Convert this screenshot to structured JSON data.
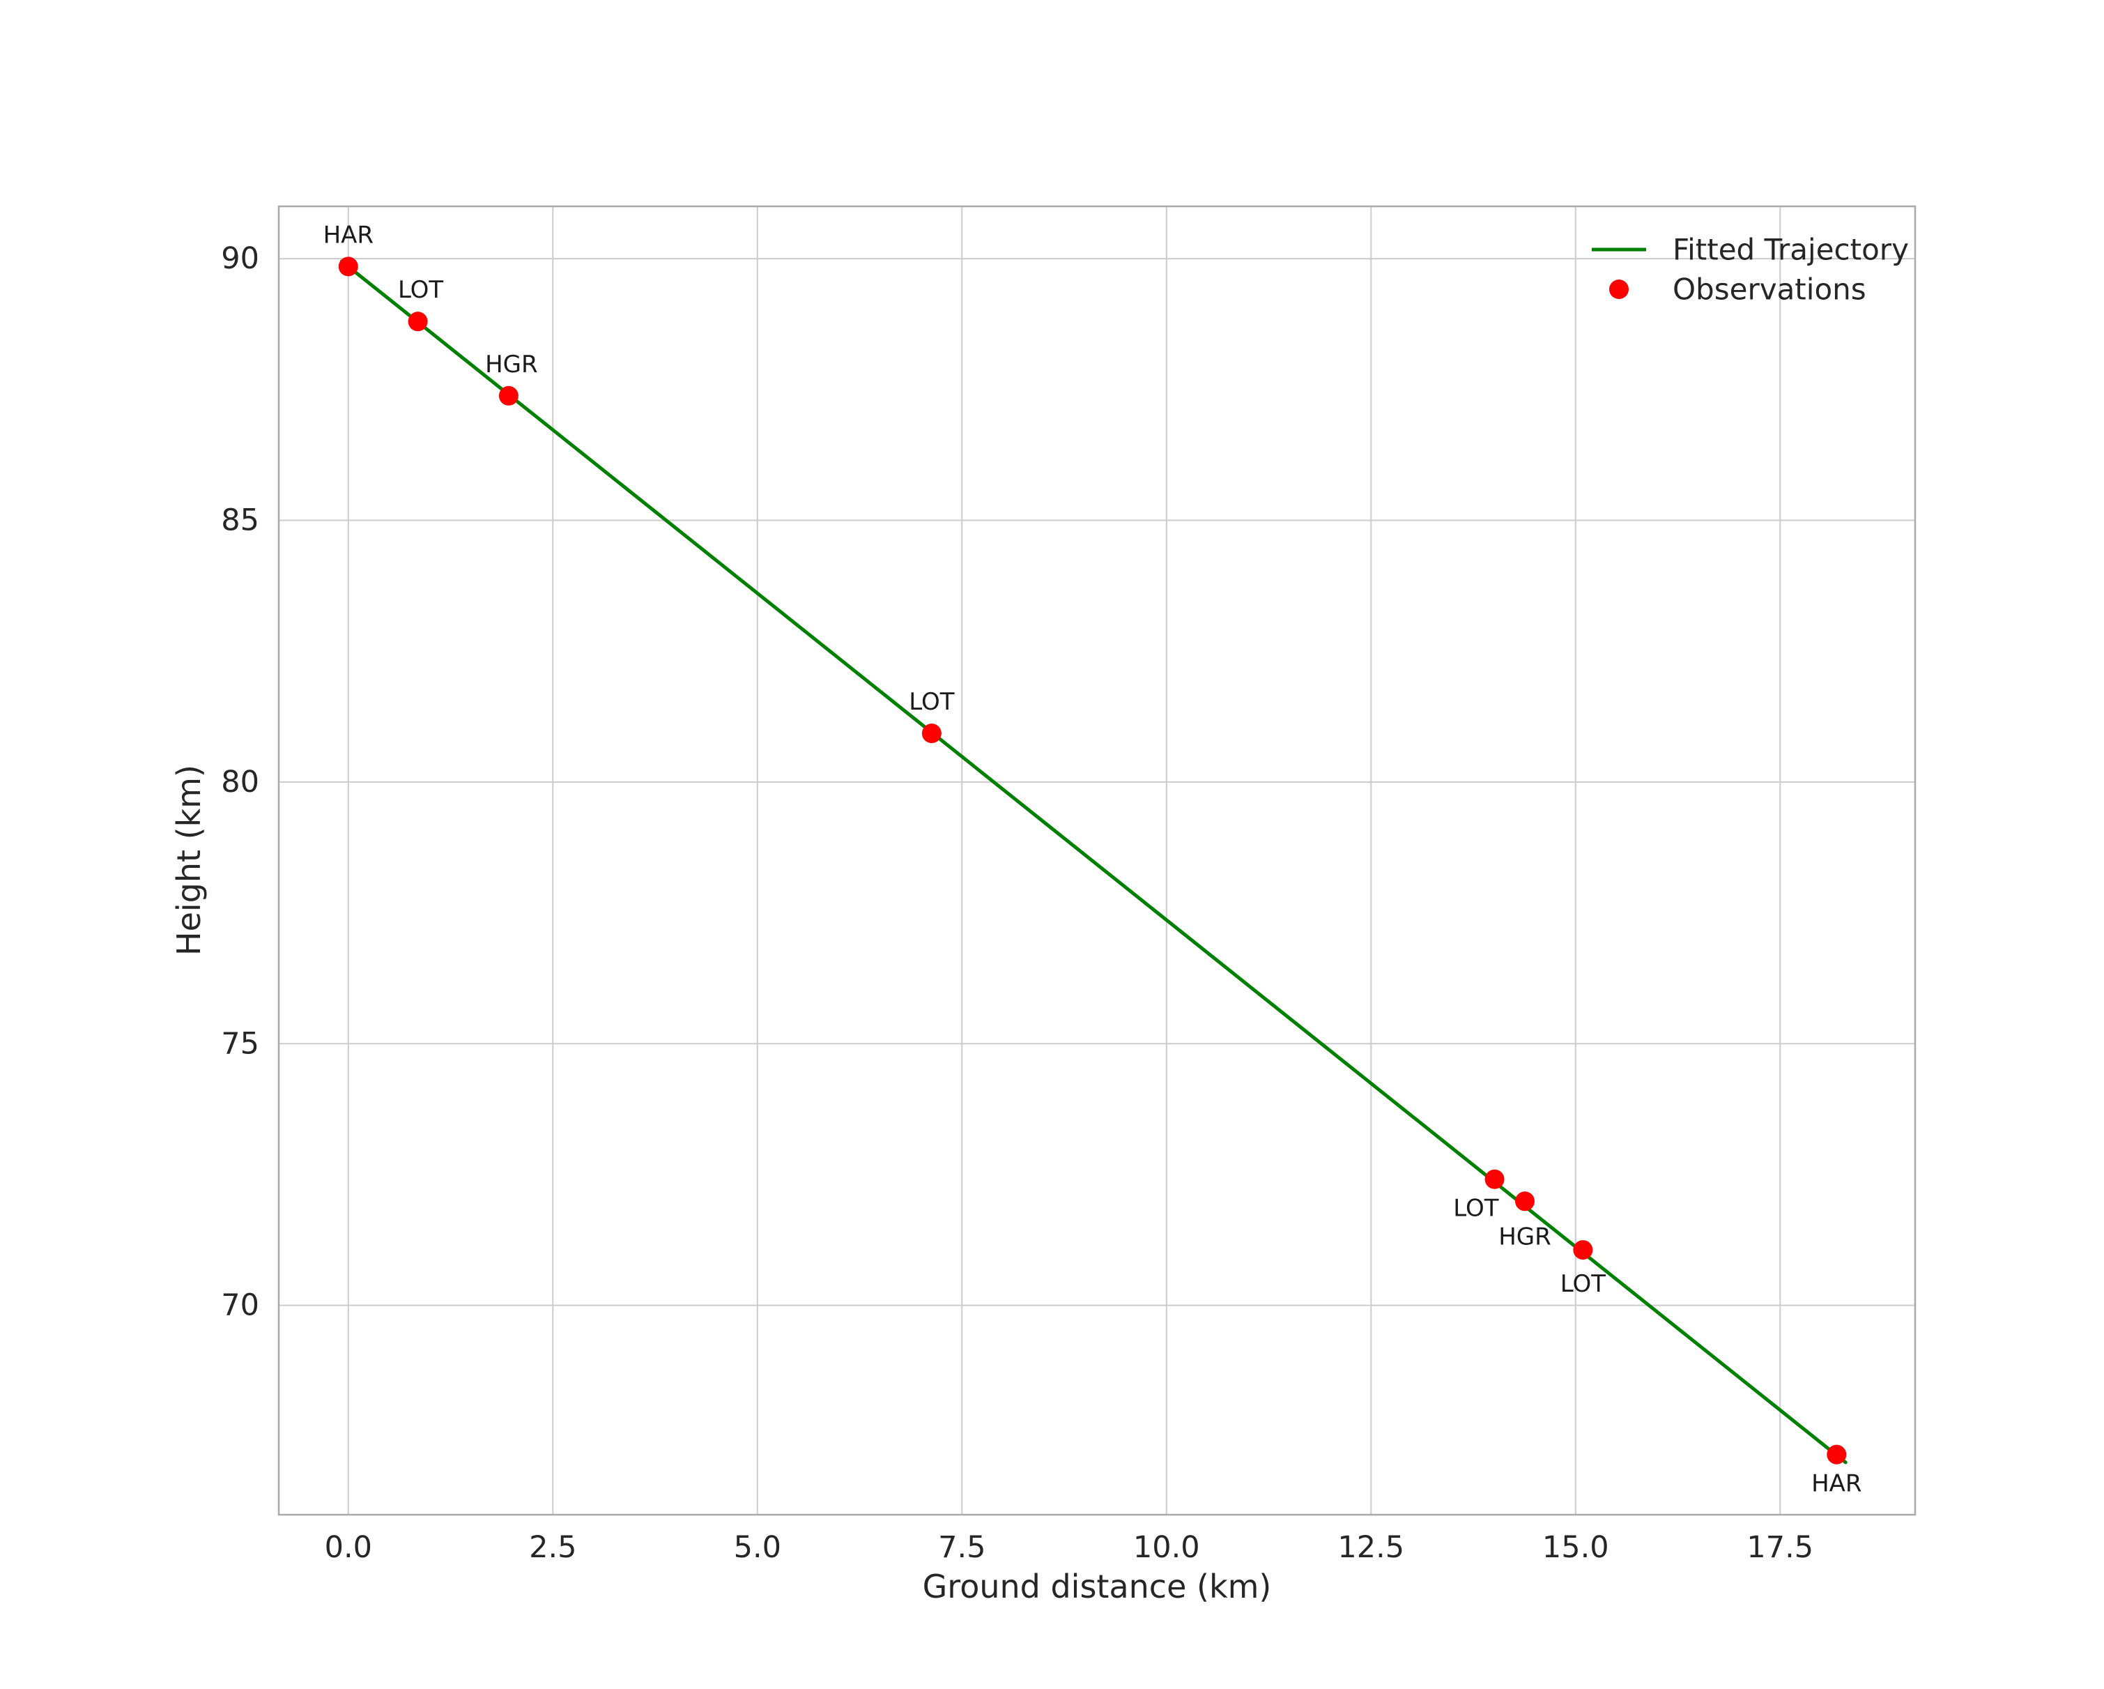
{
  "chart_data": {
    "type": "scatter",
    "title": "",
    "xlabel": "Ground distance (km)",
    "ylabel": "Height (km)",
    "xlim": [
      -0.85,
      19.15
    ],
    "ylim": [
      66.0,
      91.0
    ],
    "grid": true,
    "legend_position": "upper right",
    "xticks": {
      "values": [
        0.0,
        2.5,
        5.0,
        7.5,
        10.0,
        12.5,
        15.0,
        17.5
      ],
      "labels": [
        "0.0",
        "2.5",
        "5.0",
        "7.5",
        "10.0",
        "12.5",
        "15.0",
        "17.5"
      ]
    },
    "yticks": {
      "values": [
        70,
        75,
        80,
        85,
        90
      ],
      "labels": [
        "70",
        "75",
        "80",
        "85",
        "90"
      ]
    },
    "series": [
      {
        "name": "Fitted Trajectory",
        "type": "line",
        "color": "#008000",
        "x": [
          -0.08,
          18.3
        ],
        "y": [
          89.95,
          67.0
        ]
      },
      {
        "name": "Observations",
        "type": "scatter",
        "color": "#ff0000",
        "points": [
          {
            "x": 0.0,
            "y": 89.85,
            "station": "HAR",
            "label_anchor": "middle",
            "label_dx": 0,
            "label_dy": -34
          },
          {
            "x": 0.85,
            "y": 88.8,
            "station": "LOT",
            "label_anchor": "middle",
            "label_dx": 4,
            "label_dy": -34
          },
          {
            "x": 1.96,
            "y": 87.38,
            "station": "HGR",
            "label_anchor": "middle",
            "label_dx": 4,
            "label_dy": -34
          },
          {
            "x": 7.13,
            "y": 80.93,
            "station": "LOT",
            "label_anchor": "middle",
            "label_dx": 0,
            "label_dy": -34
          },
          {
            "x": 14.01,
            "y": 72.41,
            "station": "LOT",
            "label_anchor": "end",
            "label_dx": 6,
            "label_dy": 53
          },
          {
            "x": 14.38,
            "y": 71.99,
            "station": "HGR",
            "label_anchor": "middle",
            "label_dx": 0,
            "label_dy": 62
          },
          {
            "x": 15.09,
            "y": 71.06,
            "station": "LOT",
            "label_anchor": "middle",
            "label_dx": 0,
            "label_dy": 60
          },
          {
            "x": 18.19,
            "y": 67.15,
            "station": "HAR",
            "label_anchor": "middle",
            "label_dx": 0,
            "label_dy": 53
          }
        ]
      }
    ],
    "legend": [
      {
        "label": "Fitted Trajectory",
        "marker": "line",
        "color": "#008000"
      },
      {
        "label": "Observations",
        "marker": "dot",
        "color": "#ff0000"
      }
    ]
  },
  "style": {
    "background": "#ffffff",
    "grid_color": "#cccccc",
    "spine_color": "#aaaaaa",
    "tick_text_color": "#262626",
    "annotation_color": "#1a1a1a"
  }
}
